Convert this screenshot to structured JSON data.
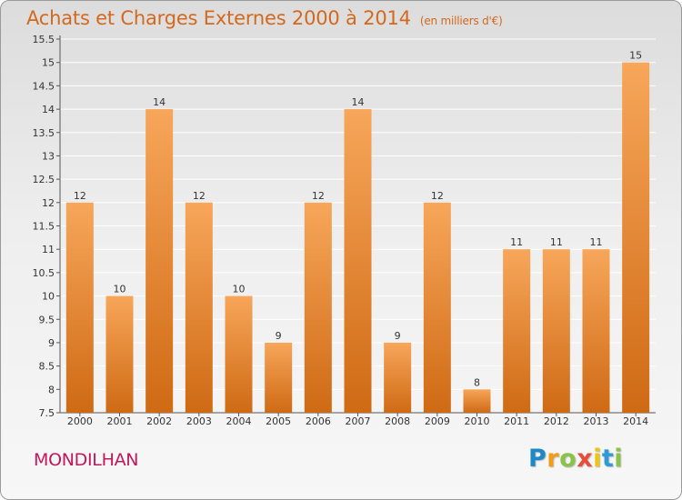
{
  "header": {
    "title": "Achats et Charges Externes 2000 à 2014",
    "unit": "(en milliers d'€)"
  },
  "footer": {
    "commune": "MONDILHAN",
    "brand": [
      "P",
      "r",
      "o",
      "x",
      "i",
      "t",
      "i"
    ],
    "brand_colors": [
      "#1e88c8",
      "#f39c12",
      "#8bc34a",
      "#e74c3c",
      "#f1c40f",
      "#2e9bd6",
      "#8bc34a"
    ]
  },
  "colors": {
    "bar_top": "#f7a65a",
    "bar_bottom": "#cf6a14",
    "title": "#d2691e",
    "commune": "#c2185b"
  },
  "chart_data": {
    "type": "bar",
    "title": "Achats et Charges Externes 2000 à 2014",
    "subtitle": "(en milliers d'€)",
    "xlabel": "",
    "ylabel": "",
    "categories": [
      "2000",
      "2001",
      "2002",
      "2003",
      "2004",
      "2005",
      "2006",
      "2007",
      "2008",
      "2009",
      "2010",
      "2011",
      "2012",
      "2013",
      "2014"
    ],
    "values": [
      12,
      10,
      14,
      12,
      10,
      9,
      12,
      14,
      9,
      12,
      8,
      11,
      11,
      11,
      15
    ],
    "value_labels": [
      "12",
      "10",
      "14",
      "12",
      "10",
      "9",
      "12",
      "14",
      "9",
      "12",
      "8",
      "11",
      "11",
      "11",
      "15"
    ],
    "ylim": [
      7.5,
      15.5
    ],
    "yticks": [
      "7.5",
      "8",
      "8.5",
      "9",
      "9.5",
      "10",
      "10.5",
      "11",
      "11.5",
      "12",
      "12.5",
      "13",
      "13.5",
      "14",
      "14.5",
      "15",
      "15.5"
    ],
    "grid": true,
    "legend": "none"
  }
}
